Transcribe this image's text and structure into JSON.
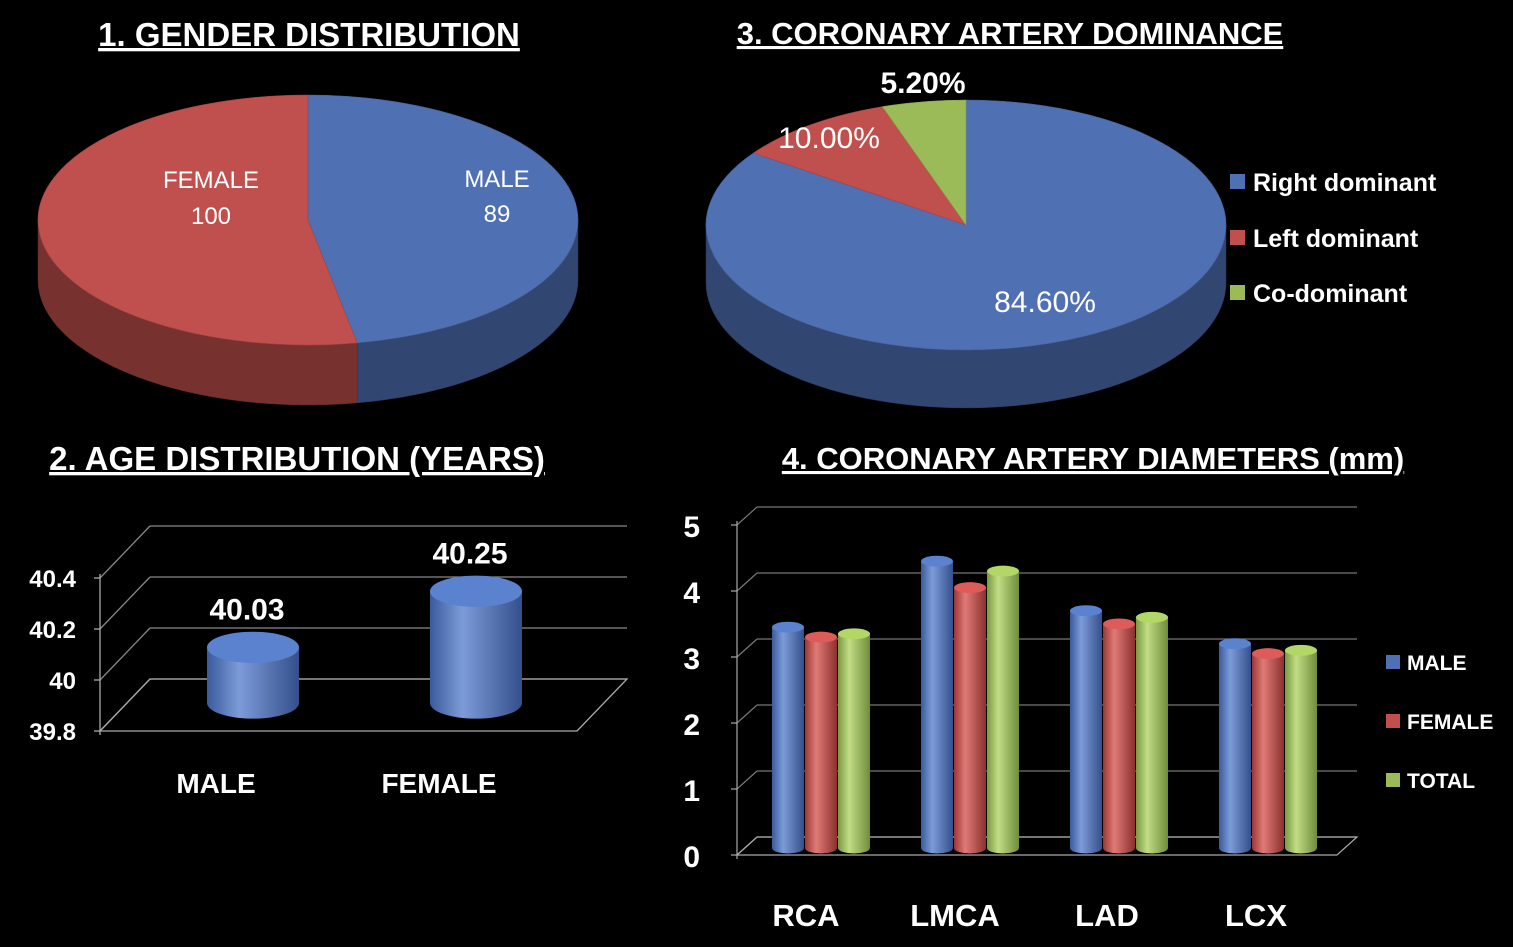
{
  "colors": {
    "blue": "#4f71b4",
    "red": "#c0504d",
    "green": "#9bbb59",
    "background": "#000000"
  },
  "chart_data": [
    {
      "type": "pie",
      "title": "1. GENDER DISTRIBUTION",
      "slices": [
        {
          "label": "MALE",
          "value": 89,
          "display": "89",
          "color": "#4f71b4"
        },
        {
          "label": "FEMALE",
          "value": 100,
          "display": "100",
          "color": "#c0504d"
        }
      ],
      "legend": "none"
    },
    {
      "type": "bar",
      "title": "2. AGE DISTRIBUTION (YEARS)",
      "categories": [
        "MALE",
        "FEMALE"
      ],
      "values": [
        40.03,
        40.25
      ],
      "value_labels": [
        "40.03",
        "40.25"
      ],
      "ylim": [
        39.8,
        40.4
      ],
      "yticks": [
        "39.8",
        "40",
        "40.2",
        "40.4"
      ],
      "grid": true
    },
    {
      "type": "pie",
      "title": "3. CORONARY ARTERY DOMINANCE",
      "slices": [
        {
          "label": "Right dominant",
          "value": 84.6,
          "display": "84.60%",
          "color": "#4f71b4"
        },
        {
          "label": "Left dominant",
          "value": 10.0,
          "display": "10.00%",
          "color": "#c0504d"
        },
        {
          "label": "Co-dominant",
          "value": 5.2,
          "display": "5.20%",
          "color": "#9bbb59"
        }
      ],
      "legend": "right"
    },
    {
      "type": "bar",
      "title": "4. CORONARY ARTERY DIAMETERS (mm)",
      "categories": [
        "RCA",
        "LMCA",
        "LAD",
        "LCX"
      ],
      "series": [
        {
          "name": "MALE",
          "values": [
            3.3,
            4.3,
            3.55,
            3.05
          ],
          "color": "#4f71b4"
        },
        {
          "name": "FEMALE",
          "values": [
            3.15,
            3.9,
            3.35,
            2.9
          ],
          "color": "#c0504d"
        },
        {
          "name": "TOTAL",
          "values": [
            3.2,
            4.15,
            3.45,
            2.95
          ],
          "color": "#9bbb59"
        }
      ],
      "ylim": [
        0,
        5
      ],
      "yticks": [
        "0",
        "1",
        "2",
        "3",
        "4",
        "5"
      ],
      "legend": "right",
      "grid": true
    }
  ]
}
